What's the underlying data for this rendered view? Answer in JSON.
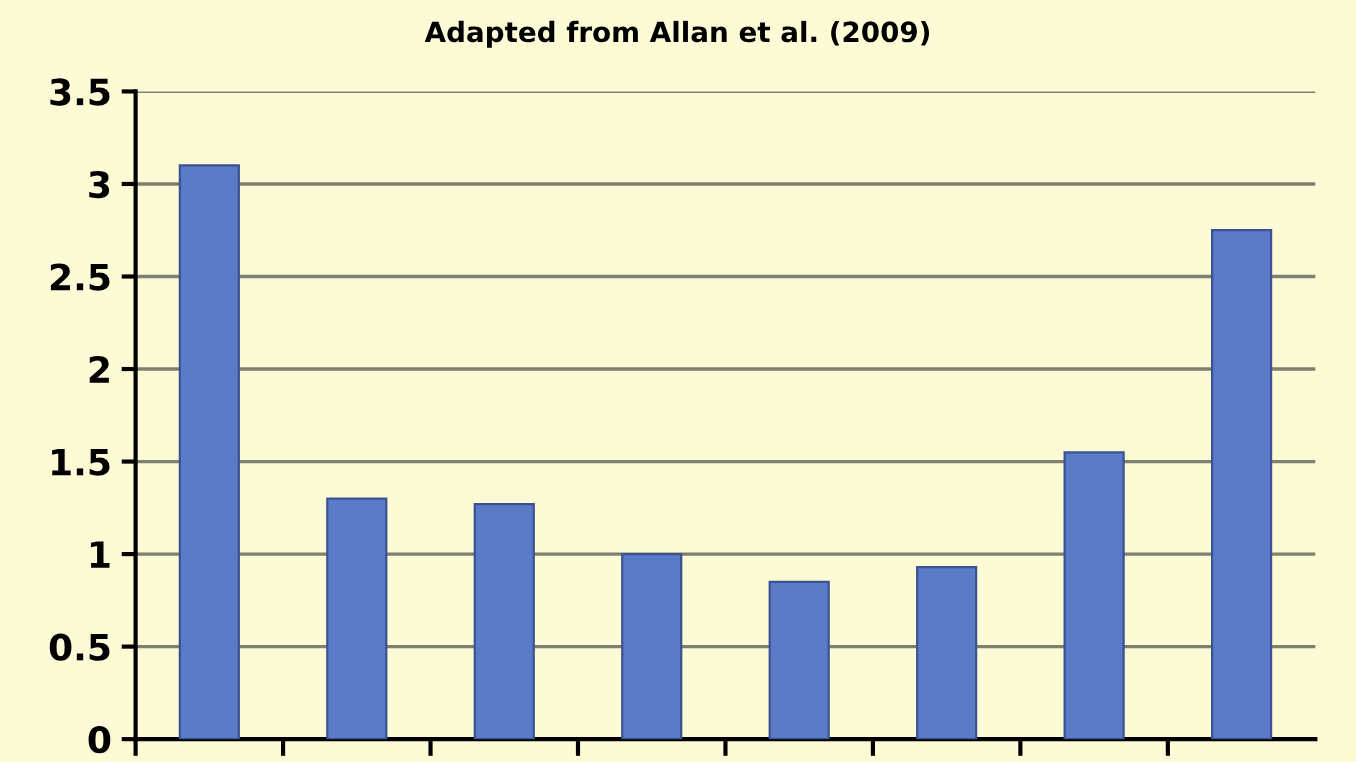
{
  "chart_data": {
    "type": "bar",
    "title": "Adapted from Allan et al. (2009)",
    "categories": [
      null,
      null,
      null,
      null,
      null,
      null,
      null,
      null
    ],
    "values": [
      3.1,
      1.3,
      1.27,
      1.0,
      0.85,
      0.93,
      1.55,
      2.75
    ],
    "color": "#5b7bc8",
    "ylim": [
      0,
      3.5
    ],
    "yticks": [
      0,
      0.5,
      1,
      1.5,
      2,
      2.5,
      3,
      3.5
    ],
    "grid": "y",
    "legend": false
  }
}
